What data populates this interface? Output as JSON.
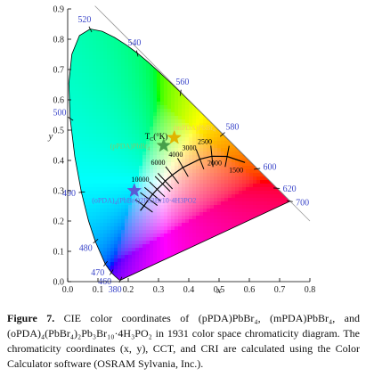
{
  "chart_data": {
    "type": "scatter",
    "title": "",
    "xlabel": "x",
    "ylabel": "y",
    "xlim": [
      0.0,
      0.8
    ],
    "ylim": [
      0.0,
      0.9
    ],
    "x_ticks": [
      "0.0",
      "0.1",
      "0.2",
      "0.3",
      "0.4",
      "0.5",
      "0.6",
      "0.7",
      "0.8"
    ],
    "y_ticks": [
      "0.0",
      "0.1",
      "0.2",
      "0.3",
      "0.4",
      "0.5",
      "0.6",
      "0.7",
      "0.8",
      "0.9"
    ],
    "grid": false,
    "spectral_locus": [
      [
        0.1741,
        0.005
      ],
      [
        0.1738,
        0.0049
      ],
      [
        0.1733,
        0.0048
      ],
      [
        0.1726,
        0.0048
      ],
      [
        0.1714,
        0.0051
      ],
      [
        0.1689,
        0.0069
      ],
      [
        0.1644,
        0.0109
      ],
      [
        0.1566,
        0.0177
      ],
      [
        0.144,
        0.0297
      ],
      [
        0.1241,
        0.0578
      ],
      [
        0.0913,
        0.1327
      ],
      [
        0.0687,
        0.2007
      ],
      [
        0.0454,
        0.295
      ],
      [
        0.0235,
        0.4127
      ],
      [
        0.0082,
        0.5384
      ],
      [
        0.0039,
        0.6548
      ],
      [
        0.0139,
        0.7502
      ],
      [
        0.0389,
        0.812
      ],
      [
        0.0743,
        0.8338
      ],
      [
        0.1142,
        0.8262
      ],
      [
        0.1547,
        0.8059
      ],
      [
        0.1929,
        0.7816
      ],
      [
        0.2296,
        0.7543
      ],
      [
        0.2658,
        0.7243
      ],
      [
        0.3016,
        0.6923
      ],
      [
        0.3373,
        0.6589
      ],
      [
        0.3731,
        0.6245
      ],
      [
        0.4087,
        0.5896
      ],
      [
        0.4441,
        0.5547
      ],
      [
        0.4788,
        0.5202
      ],
      [
        0.5125,
        0.4866
      ],
      [
        0.5448,
        0.4544
      ],
      [
        0.5752,
        0.4242
      ],
      [
        0.6029,
        0.3965
      ],
      [
        0.627,
        0.3725
      ],
      [
        0.6482,
        0.3514
      ],
      [
        0.6658,
        0.334
      ],
      [
        0.6801,
        0.3197
      ],
      [
        0.6915,
        0.3083
      ],
      [
        0.7006,
        0.2993
      ],
      [
        0.7079,
        0.292
      ],
      [
        0.714,
        0.2859
      ],
      [
        0.719,
        0.2809
      ],
      [
        0.723,
        0.277
      ],
      [
        0.726,
        0.274
      ],
      [
        0.7283,
        0.2717
      ],
      [
        0.73,
        0.27
      ],
      [
        0.7311,
        0.2689
      ],
      [
        0.732,
        0.268
      ],
      [
        0.7334,
        0.2666
      ],
      [
        0.7344,
        0.2656
      ],
      [
        0.7347,
        0.2653
      ]
    ],
    "wavelength_labels": [
      {
        "label": "380",
        "x": 0.1741,
        "y": 0.005
      },
      {
        "label": "460",
        "x": 0.144,
        "y": 0.0297
      },
      {
        "label": "470",
        "x": 0.1241,
        "y": 0.0578
      },
      {
        "label": "480",
        "x": 0.0913,
        "y": 0.1327
      },
      {
        "label": "490",
        "x": 0.0454,
        "y": 0.295
      },
      {
        "label": "500",
        "x": 0.0082,
        "y": 0.5384
      },
      {
        "label": "520",
        "x": 0.0743,
        "y": 0.8338
      },
      {
        "label": "540",
        "x": 0.2296,
        "y": 0.7543
      },
      {
        "label": "560",
        "x": 0.3731,
        "y": 0.6245
      },
      {
        "label": "580",
        "x": 0.5125,
        "y": 0.4866
      },
      {
        "label": "600",
        "x": 0.627,
        "y": 0.3725
      },
      {
        "label": "620",
        "x": 0.6915,
        "y": 0.3083
      },
      {
        "label": "700",
        "x": 0.7347,
        "y": 0.2653
      }
    ],
    "planckian_locus": [
      [
        0.2399,
        0.2341
      ],
      [
        0.2521,
        0.2501
      ],
      [
        0.2681,
        0.2725
      ],
      [
        0.2807,
        0.2883
      ],
      [
        0.2952,
        0.3048
      ],
      [
        0.3136,
        0.3224
      ],
      [
        0.3221,
        0.3318
      ],
      [
        0.3451,
        0.3516
      ],
      [
        0.3805,
        0.3768
      ],
      [
        0.4369,
        0.4041
      ],
      [
        0.4763,
        0.4137
      ],
      [
        0.5266,
        0.4133
      ],
      [
        0.5857,
        0.3931
      ]
    ],
    "cct_labels": [
      {
        "label": "10000",
        "x": 0.2807,
        "y": 0.2883
      },
      {
        "label": "6000",
        "x": 0.3221,
        "y": 0.3318
      },
      {
        "label": "4000",
        "x": 0.3805,
        "y": 0.3768
      },
      {
        "label": "3000",
        "x": 0.4369,
        "y": 0.4041
      },
      {
        "label": "2500",
        "x": 0.4763,
        "y": 0.4137
      },
      {
        "label": "2000",
        "x": 0.5266,
        "y": 0.4133
      },
      {
        "label": "1500",
        "x": 0.5857,
        "y": 0.3931
      }
    ],
    "tc_label": "T",
    "tc_subscript": "C",
    "tc_unit": "(°K)",
    "series": [
      {
        "name": "(pPDA)PbBr4",
        "x": 0.317,
        "y": 0.449,
        "color": "#48a04a"
      },
      {
        "name": "(mPDA)PbBr4",
        "x": 0.352,
        "y": 0.475,
        "color": "#e0b400"
      },
      {
        "name": "(oPDA)4(PbBr4)2Pb3Br10·4H3PO2",
        "x": 0.22,
        "y": 0.3,
        "color": "#5a5ad6"
      }
    ],
    "sample_labels": [
      {
        "text": "(pPDA)PbBr",
        "sub": "4",
        "tail": ""
      },
      {
        "text": "(mPDA)PbBr",
        "sub": "4",
        "tail": ""
      },
      {
        "text": "(oPDA)",
        "sub": "4",
        "tail": "(PbBr4)2Pb3Br10·4H3PO2"
      }
    ]
  },
  "caption": {
    "label": "Figure 7.",
    "text": " CIE color coordinates of (pPDA)PbBr₄, (mPDA)PbBr₄, and (oPDA)₄(PbBr₄)₂Pb₃Br₁₀·4H₃PO₂ in 1931 color space chromaticity diagram. The chromaticity coordinates (x, y), CCT, and CRI are calculated using the Color Calculator software (OSRAM Sylvania, Inc.)."
  }
}
